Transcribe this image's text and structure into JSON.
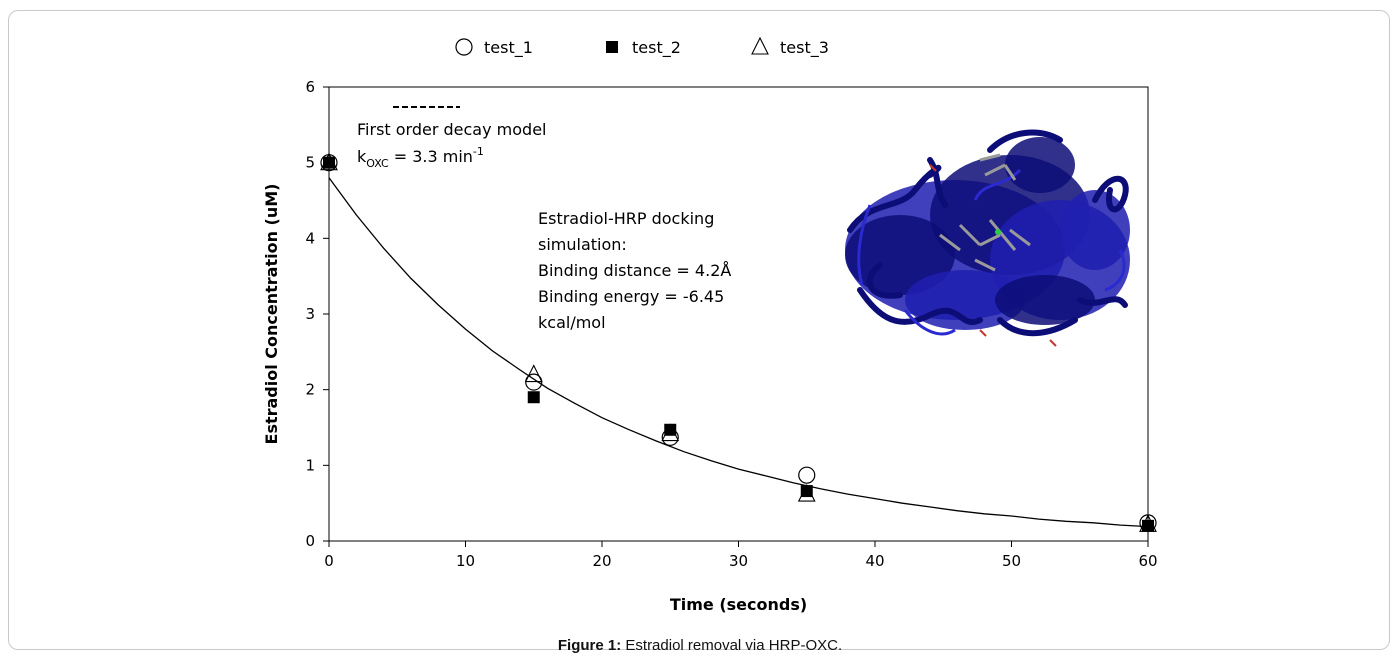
{
  "caption": {
    "label": "Figure 1:",
    "text": "Estradiol removal via HRP-OXC."
  },
  "chart_data": {
    "type": "scatter",
    "xlabel": "Time (seconds)",
    "ylabel": "Estradiol Concentration (uM)",
    "xlim": [
      0,
      60
    ],
    "ylim": [
      0,
      6
    ],
    "xticks": [
      0,
      10,
      20,
      30,
      40,
      50,
      60
    ],
    "yticks": [
      0,
      1,
      2,
      3,
      4,
      5,
      6
    ],
    "grid": false,
    "legend_position": "top",
    "series": [
      {
        "name": "test_1",
        "marker": "open-circle",
        "x": [
          0,
          15,
          25,
          35,
          60
        ],
        "y": [
          5.0,
          2.1,
          1.37,
          0.87,
          0.24
        ]
      },
      {
        "name": "test_2",
        "marker": "filled-square",
        "x": [
          0,
          15,
          25,
          35,
          60
        ],
        "y": [
          5.0,
          1.9,
          1.47,
          0.66,
          0.2
        ]
      },
      {
        "name": "test_3",
        "marker": "open-triangle",
        "x": [
          0,
          15,
          25,
          35,
          60
        ],
        "y": [
          5.0,
          2.2,
          1.42,
          0.62,
          0.22
        ]
      }
    ],
    "model": {
      "type": "line",
      "style": "solid",
      "legend_style": "dashed",
      "x": [
        0,
        2,
        4,
        6,
        8,
        10,
        12,
        14,
        16,
        18,
        20,
        22,
        24,
        26,
        28,
        30,
        32,
        34,
        36,
        38,
        40,
        42,
        44,
        46,
        48,
        50,
        52,
        54,
        56,
        58,
        60
      ],
      "y": [
        4.8,
        4.31,
        3.87,
        3.47,
        3.12,
        2.8,
        2.51,
        2.26,
        2.02,
        1.82,
        1.63,
        1.47,
        1.32,
        1.18,
        1.06,
        0.95,
        0.86,
        0.77,
        0.69,
        0.62,
        0.56,
        0.5,
        0.45,
        0.4,
        0.36,
        0.33,
        0.29,
        0.26,
        0.24,
        0.21,
        0.19
      ]
    },
    "annotations": {
      "model_label": "First order decay model",
      "rate_prefix": "k",
      "rate_subscript": "OXC",
      "rate_value": " = 3.3 min",
      "rate_superscript": "-1",
      "docking_lines": [
        "Estradiol-HRP docking",
        "simulation:",
        "Binding distance = 4.2Å",
        "Binding energy = -6.45",
        "kcal/mol"
      ]
    },
    "colors": {
      "protein": "#1f1fb0",
      "protein_dark": "#0d0d78",
      "axis": "#000000"
    }
  }
}
